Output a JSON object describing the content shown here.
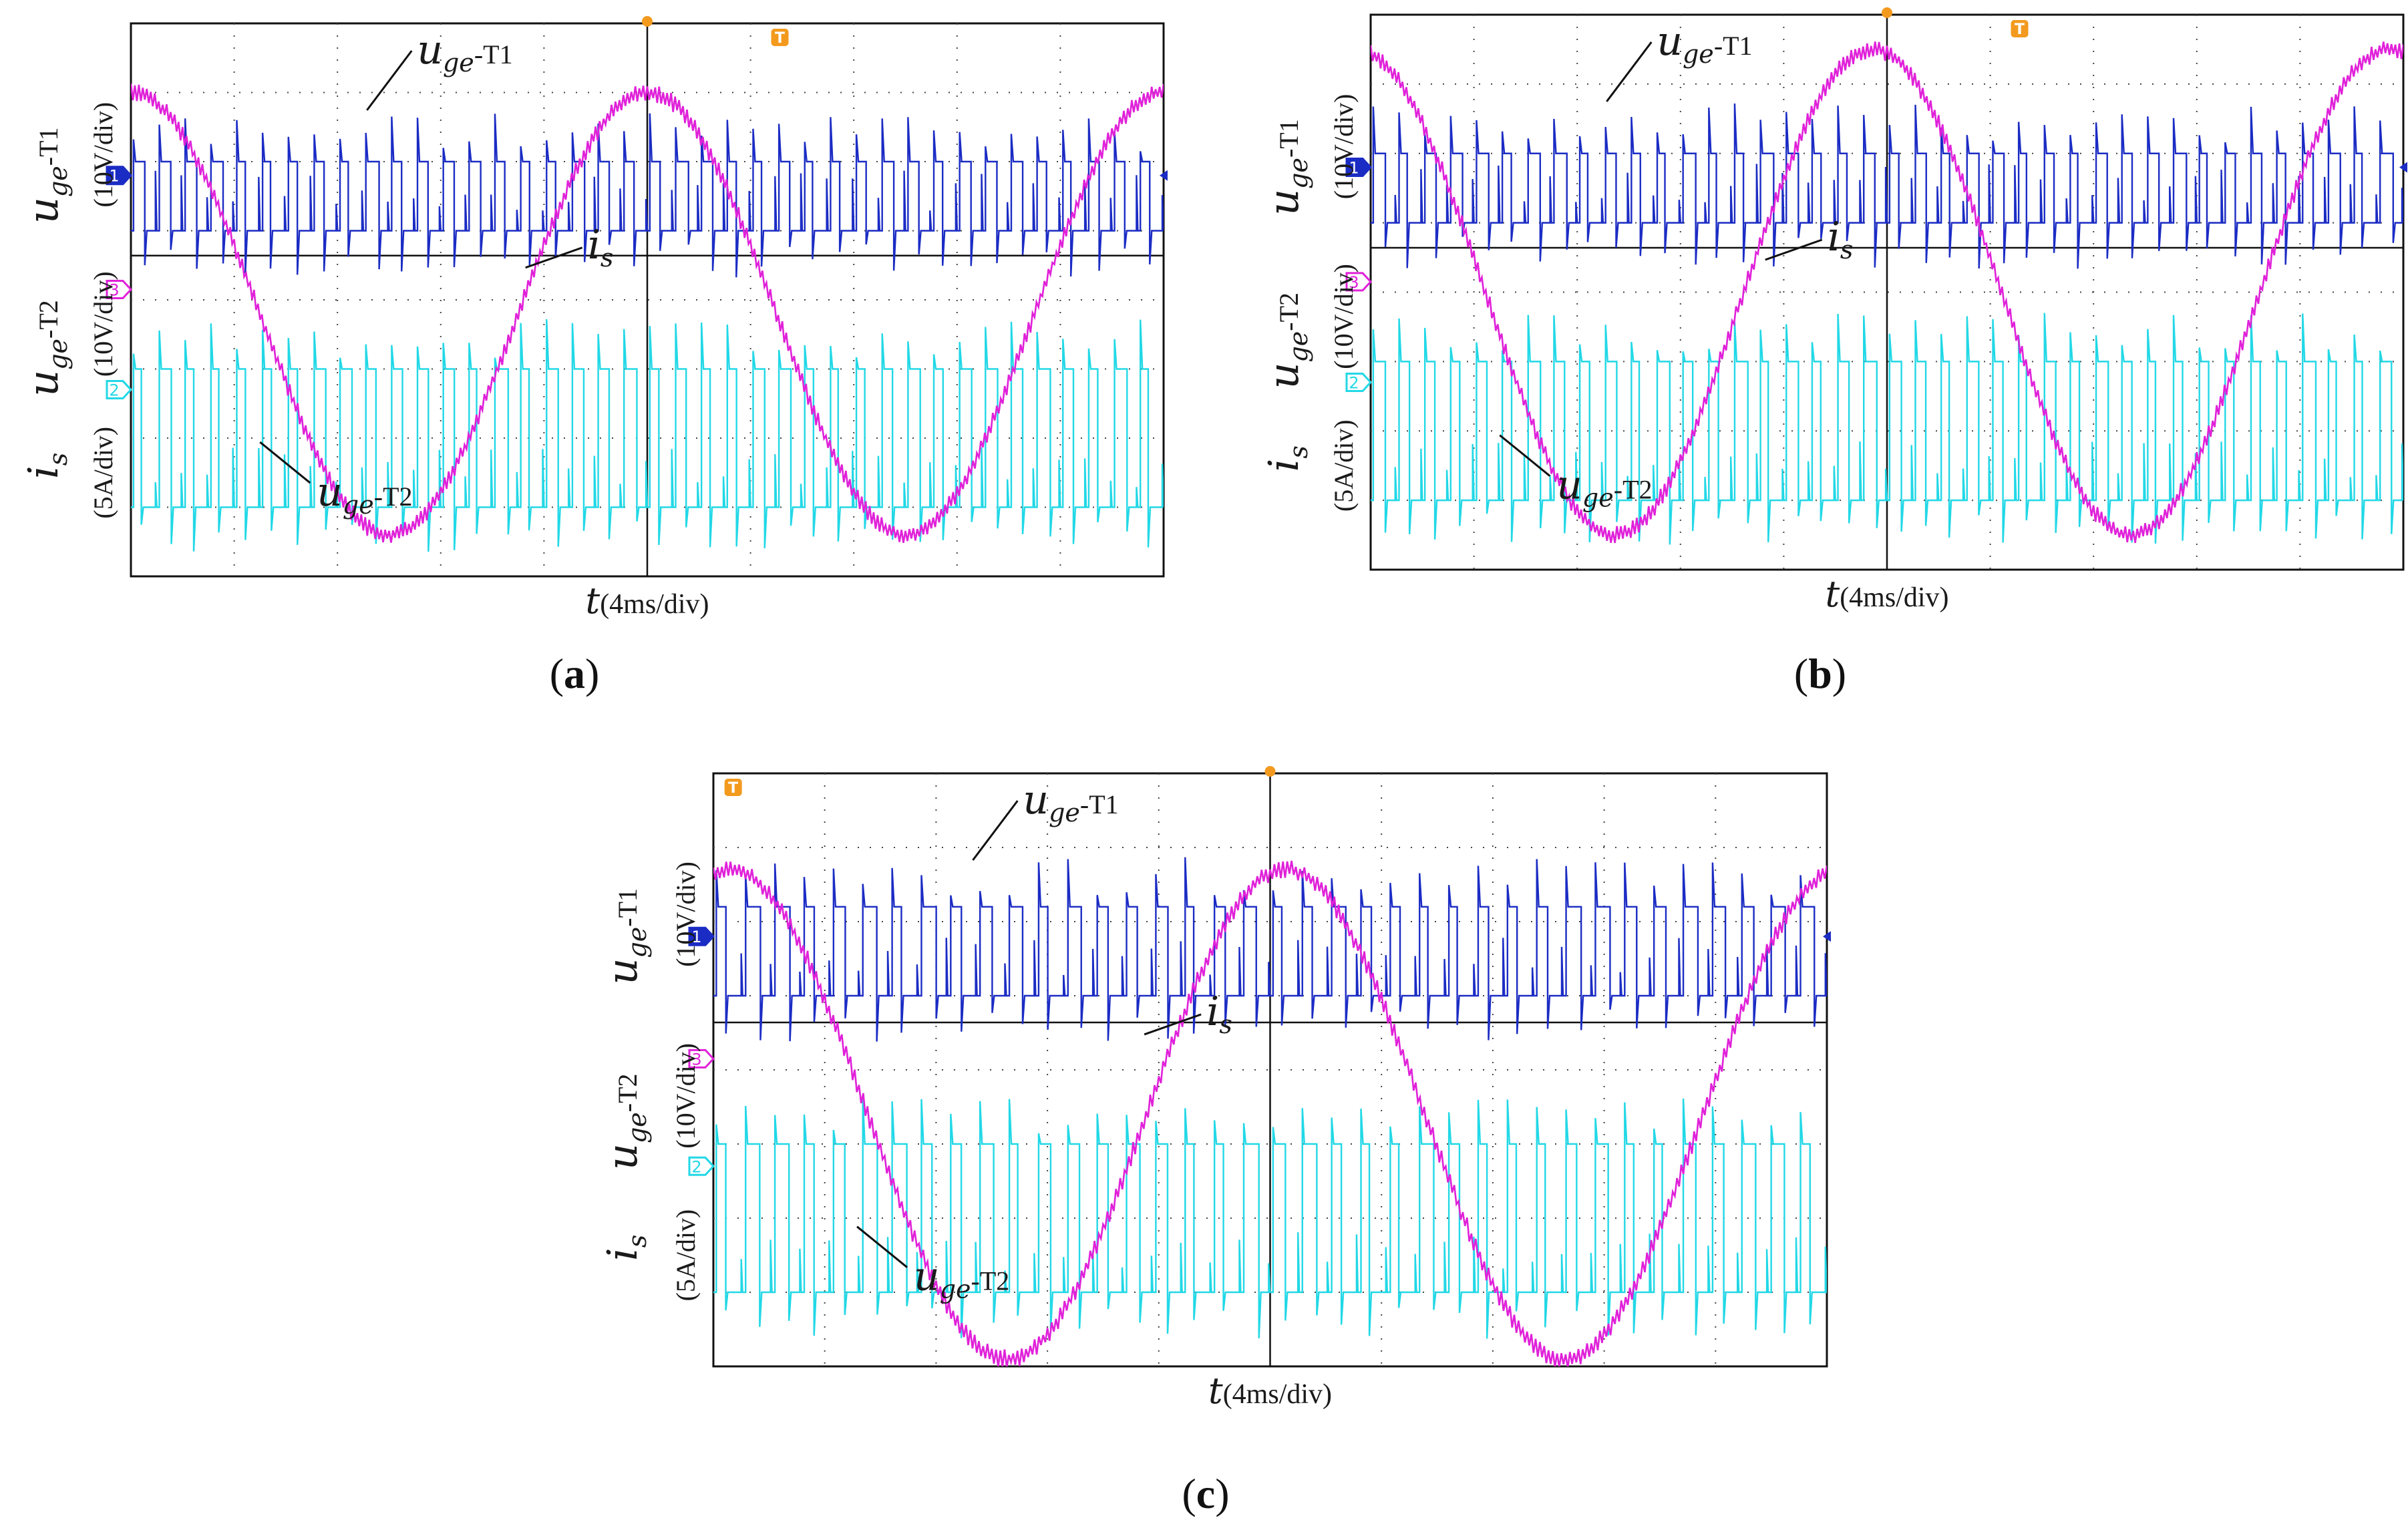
{
  "chart_data": [
    {
      "type": "line",
      "panel_label": "(a)",
      "x_label": "t(4ms/div)",
      "y_labels": {
        "t1": {
          "symbol": "u",
          "sub": "ge",
          "suffix": "-T1",
          "unit": "(10V/div)"
        },
        "t2": {
          "symbol": "u",
          "sub": "ge",
          "suffix": "-T2",
          "unit": "(10V/div)"
        },
        "is": {
          "symbol": "i",
          "sub": "s",
          "unit": "(5A/div)"
        }
      },
      "annotations": [
        {
          "series": "u_ge-T1",
          "text_main": "u",
          "text_sub": "ge",
          "text_suffix": "-T1"
        },
        {
          "series": "i_s",
          "text_main": "i",
          "text_sub": "s",
          "text_suffix": ""
        },
        {
          "series": "u_ge-T2",
          "text_main": "u",
          "text_sub": "ge",
          "text_suffix": "-T2"
        }
      ],
      "channel_markers": [
        "1",
        "3",
        "2"
      ],
      "trigger_marker": "T",
      "series": [
        {
          "name": "u_ge-T1",
          "channel": "1",
          "color": "#1b2cc4",
          "kind": "pwm",
          "pulses": 40,
          "low_div": 3.0,
          "high_div": 2.0
        },
        {
          "name": "u_ge-T2",
          "channel": "2",
          "color": "#22d8e6",
          "kind": "pwm",
          "pulses": 40,
          "low_div": 7.0,
          "high_div": 5.0
        },
        {
          "name": "i_s",
          "channel": "3",
          "color": "#e021d9",
          "kind": "sine",
          "cycles": 2,
          "start_phase_deg": 90,
          "center_div": 4.2,
          "amplitude_div": 3.2
        }
      ],
      "x_divisions": 10,
      "y_divisions": 8
    },
    {
      "type": "line",
      "panel_label": "(b)",
      "x_label": "t(4ms/div)",
      "y_labels": {
        "t1": {
          "symbol": "u",
          "sub": "ge",
          "suffix": "-T1",
          "unit": "(10V/div)"
        },
        "t2": {
          "symbol": "u",
          "sub": "ge",
          "suffix": "-T2",
          "unit": "(10V/div)"
        },
        "is": {
          "symbol": "i",
          "sub": "s",
          "unit": "(5A/div)"
        }
      },
      "annotations": [
        {
          "series": "u_ge-T1",
          "text_main": "u",
          "text_sub": "ge",
          "text_suffix": "-T1"
        },
        {
          "series": "i_s",
          "text_main": "i",
          "text_sub": "s",
          "text_suffix": ""
        },
        {
          "series": "u_ge-T2",
          "text_main": "u",
          "text_sub": "ge",
          "text_suffix": "-T2"
        }
      ],
      "channel_markers": [
        "1",
        "3",
        "2"
      ],
      "trigger_marker": "T",
      "series": [
        {
          "name": "u_ge-T1",
          "channel": "1",
          "color": "#1b2cc4",
          "kind": "pwm",
          "pulses": 40,
          "low_div": 3.0,
          "high_div": 2.0
        },
        {
          "name": "u_ge-T2",
          "channel": "2",
          "color": "#22d8e6",
          "kind": "pwm",
          "pulses": 40,
          "low_div": 7.0,
          "high_div": 5.0
        },
        {
          "name": "i_s",
          "channel": "3",
          "color": "#e021d9",
          "kind": "sine",
          "cycles": 2,
          "start_phase_deg": 100,
          "center_div": 4.0,
          "amplitude_div": 3.5
        }
      ],
      "x_divisions": 10,
      "y_divisions": 8
    },
    {
      "type": "line",
      "panel_label": "(c)",
      "x_label": "t(4ms/div)",
      "y_labels": {
        "t1": {
          "symbol": "u",
          "sub": "ge",
          "suffix": "-T1",
          "unit": "(10V/div)"
        },
        "t2": {
          "symbol": "u",
          "sub": "ge",
          "suffix": "-T2",
          "unit": "(10V/div)"
        },
        "is": {
          "symbol": "i",
          "sub": "s",
          "unit": "(5A/div)"
        }
      },
      "annotations": [
        {
          "series": "u_ge-T1",
          "text_main": "u",
          "text_sub": "ge",
          "text_suffix": "-T1"
        },
        {
          "series": "i_s",
          "text_main": "i",
          "text_sub": "s",
          "text_suffix": ""
        },
        {
          "series": "u_ge-T2",
          "text_main": "u",
          "text_sub": "ge",
          "text_suffix": "-T2"
        }
      ],
      "channel_markers": [
        "1",
        "3",
        "2"
      ],
      "trigger_marker": "T",
      "series": [
        {
          "name": "u_ge-T1",
          "channel": "1",
          "color": "#1b2cc4",
          "kind": "pwm",
          "pulses": 38,
          "low_div": 3.0,
          "high_div": 1.8
        },
        {
          "name": "u_ge-T2",
          "channel": "2",
          "color": "#22d8e6",
          "kind": "pwm",
          "pulses": 38,
          "low_div": 7.0,
          "high_div": 5.0
        },
        {
          "name": "i_s",
          "channel": "3",
          "color": "#e021d9",
          "kind": "sine",
          "cycles": 2,
          "start_phase_deg": 80,
          "center_div": 4.6,
          "amplitude_div": 3.3
        }
      ],
      "x_divisions": 10,
      "y_divisions": 8
    }
  ]
}
